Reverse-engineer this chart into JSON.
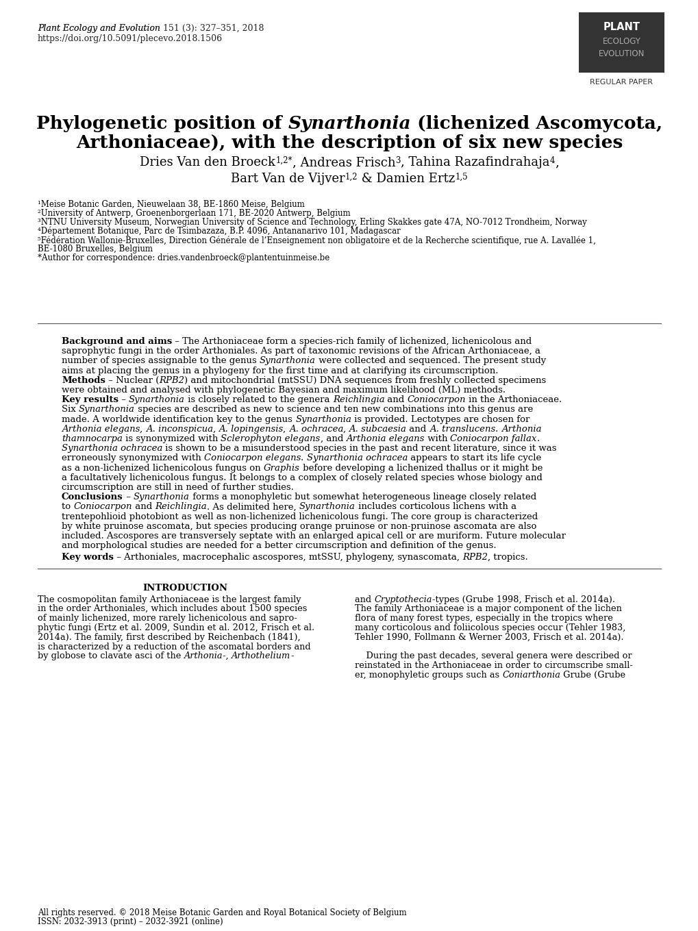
{
  "bg_color": "#ffffff",
  "journal_italic": "Plant Ecology and Evolution",
  "journal_rest": " 151 (3): 327–351, 2018",
  "journal_doi": "https://doi.org/10.5091/plecevo.2018.1506",
  "logo_text1": "PLANT",
  "logo_text2": "ECOLOGY",
  "logo_text3": "EVOLUTION",
  "regular_paper": "REGULAR PAPER",
  "aff1": "¹Meise Botanic Garden, Nieuwelaan 38, BE-1860 Meise, Belgium",
  "aff2": "²University of Antwerp, Groenenborgerlaan 171, BE-2020 Antwerp, Belgium",
  "aff3": "³NTNU University Museum, Norwegian University of Science and Technology, Erling Skakkes gate 47A, NO-7012 Trondheim, Norway",
  "aff4": "⁴Département Botanique, Parc de Tsimbazaza, B.P. 4096, Antananarivo 101, Madagascar",
  "aff5": "⁵Fédération Wallonie-Bruxelles, Direction Générale de l’Enseignement non obligatoire et de la Recherche scientifique, rue A. Lavallée 1,",
  "aff5b": "BE-1080 Bruxelles, Belgium",
  "aff_corr": "*Author for correspondence: dries.vandenbroeck@plantentuinmeise.be",
  "footer1": "All rights reserved. © 2018 Meise Botanic Garden and Royal Botanical Society of Belgium",
  "footer2": "ISSN: 2032-3913 (print) – 2032-3921 (online)"
}
